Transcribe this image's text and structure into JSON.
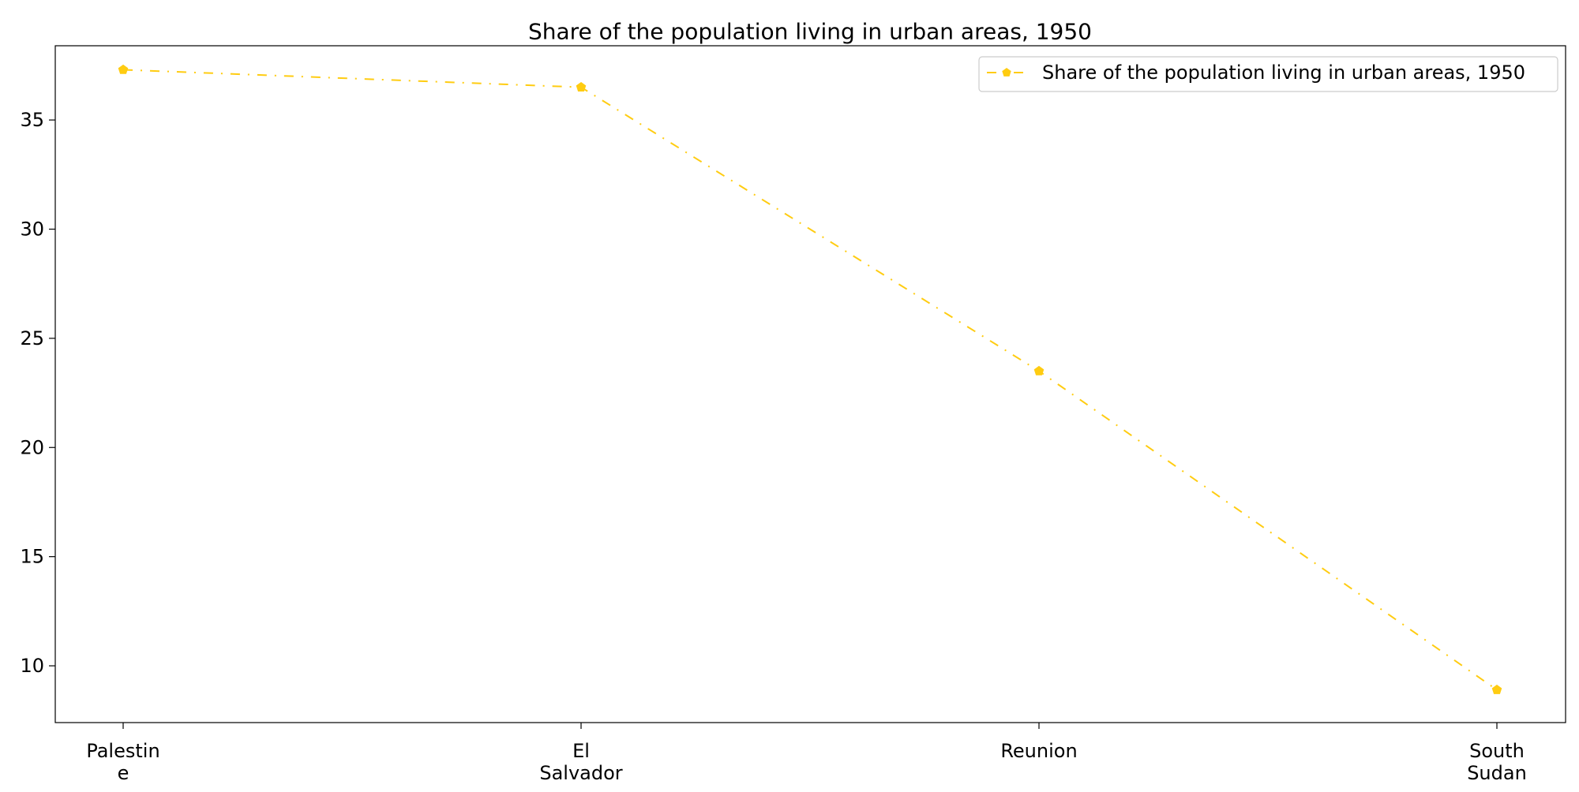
{
  "chart_data": {
    "type": "line",
    "title": "Share of the population living in urban areas, 1950",
    "xlabel": "",
    "ylabel": "",
    "categories": [
      [
        "Palestin",
        "e"
      ],
      [
        "El",
        "Salvador"
      ],
      [
        "Reunion"
      ],
      [
        "South",
        "Sudan"
      ]
    ],
    "series": [
      {
        "name": "Share of the population living in urban areas, 1950",
        "values": [
          37.3,
          36.5,
          23.5,
          8.9
        ],
        "color": "#ffcc11",
        "line_style": "dash-dot",
        "marker": "pentagon"
      }
    ],
    "ylim": [
      7.4,
      38.4
    ],
    "yticks": [
      10,
      15,
      20,
      25,
      30,
      35
    ],
    "grid": false,
    "legend_position": "top-right"
  }
}
